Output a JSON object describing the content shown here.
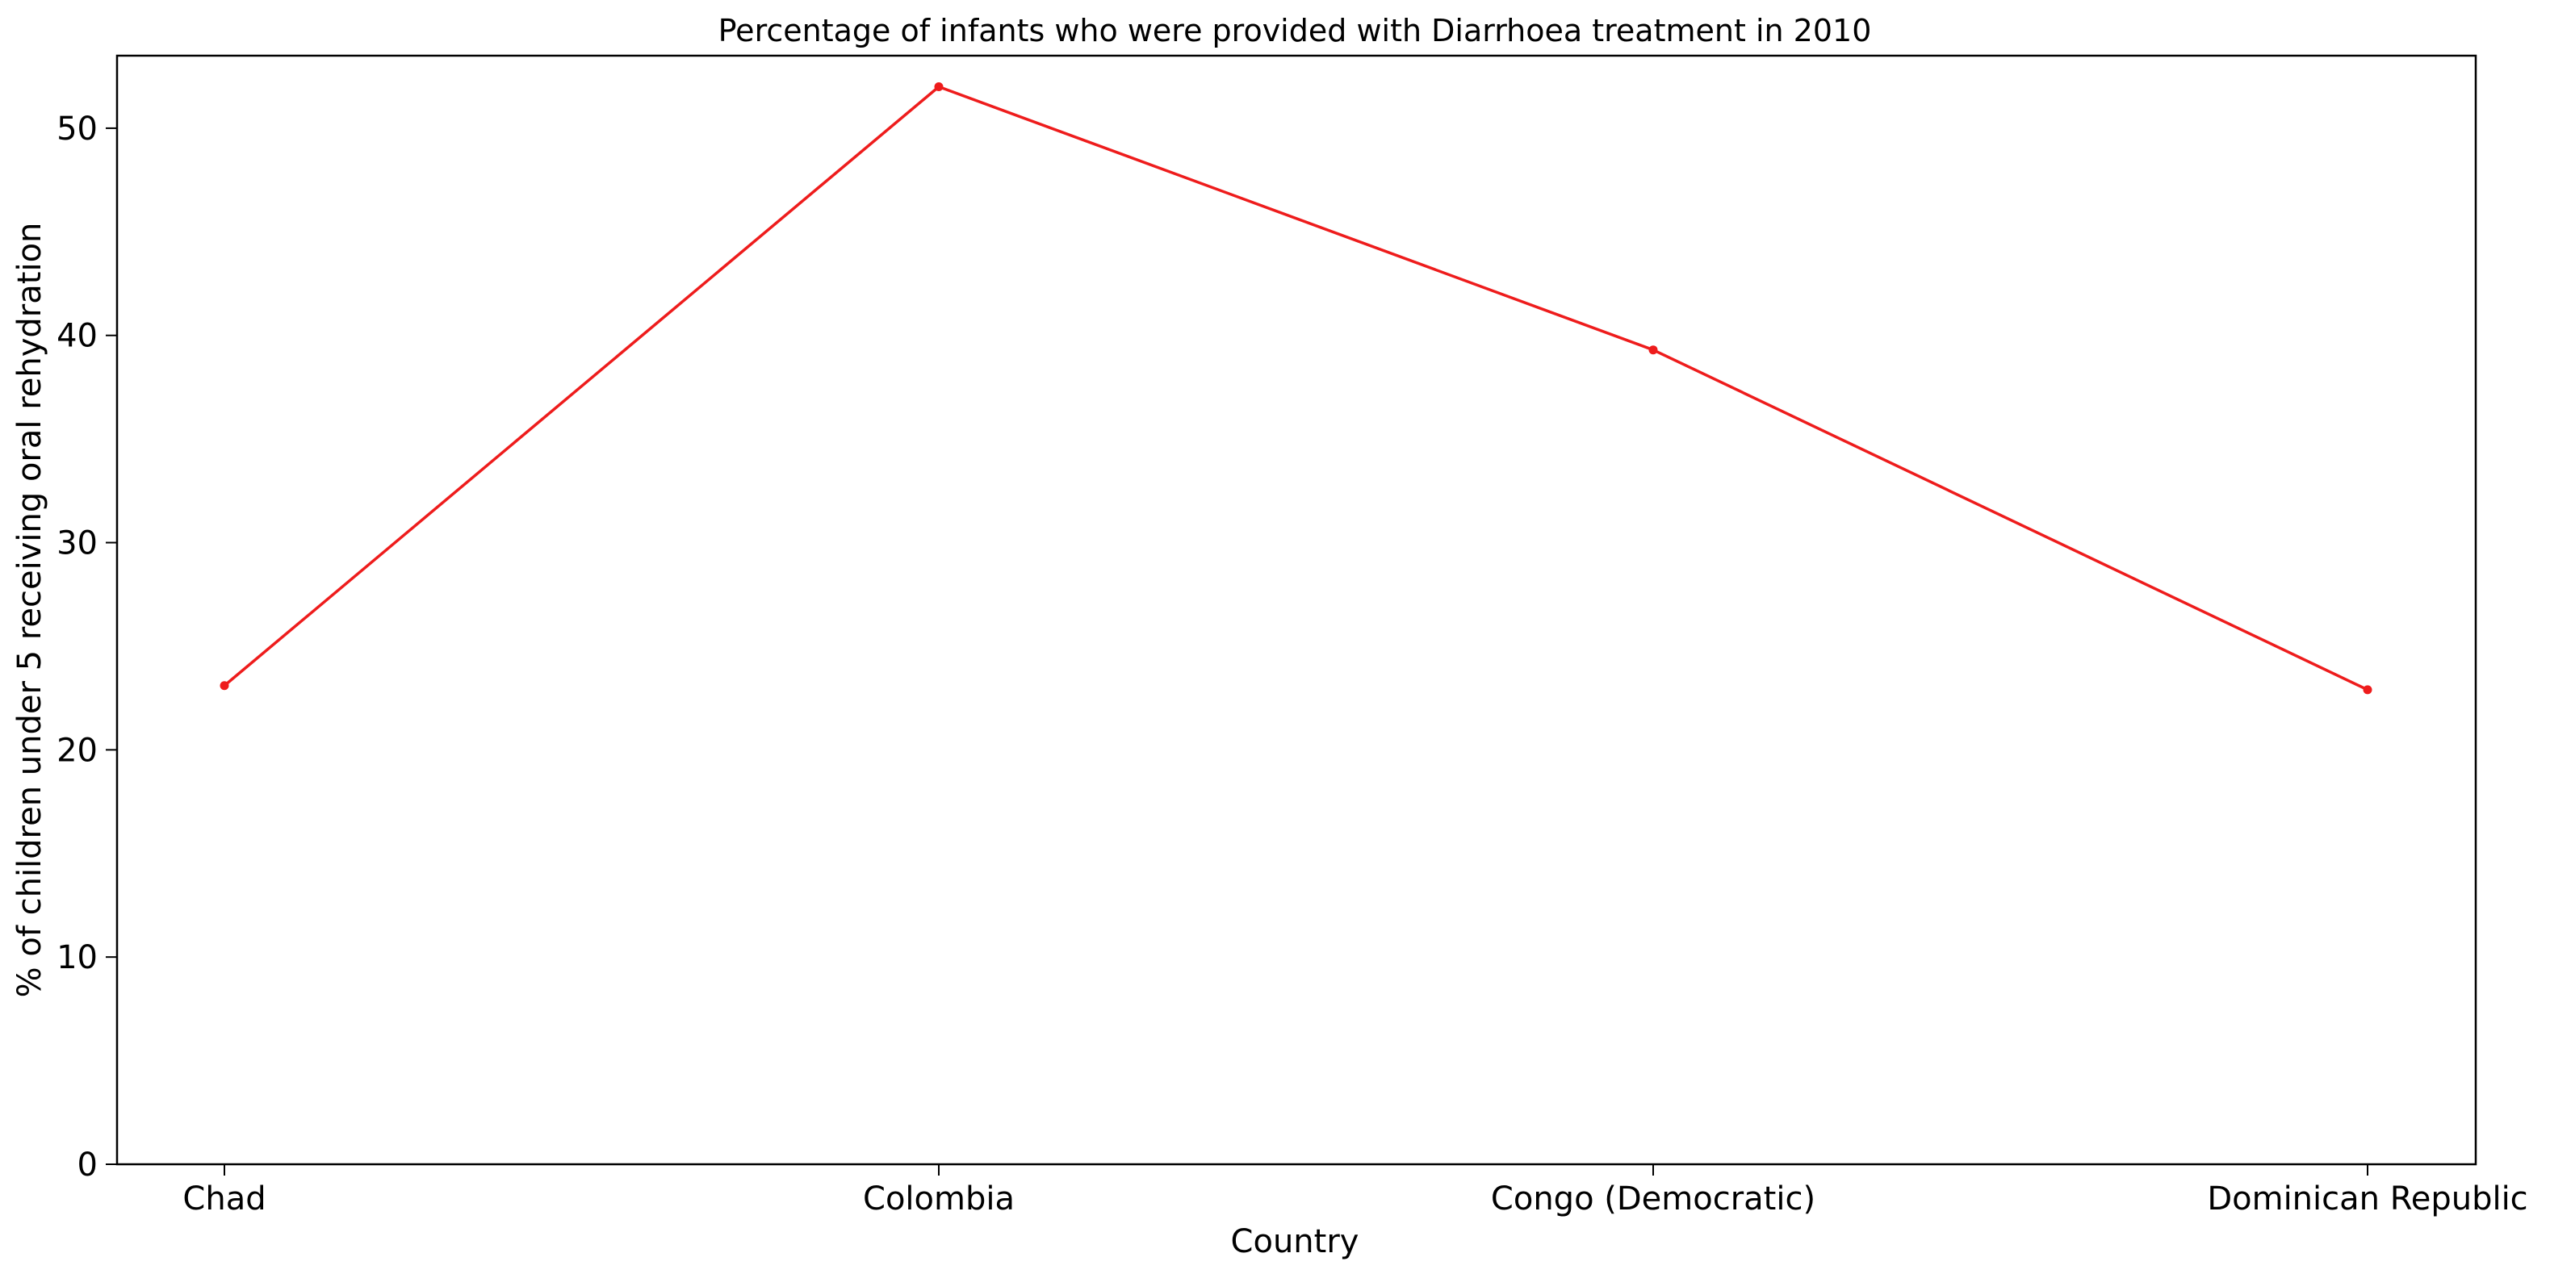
{
  "chart_data": {
    "type": "line",
    "title": "Percentage of infants who were provided with Diarrhoea treatment in 2010",
    "xlabel": "Country",
    "ylabel": "% of children under 5 receiving oral rehydration",
    "categories": [
      "Chad",
      "Colombia",
      "Congo (Democratic)",
      "Dominican Republic"
    ],
    "series": [
      {
        "values": [
          23.1,
          52.0,
          39.3,
          22.9
        ],
        "color": "#ee1c1c",
        "marker": "circle"
      }
    ],
    "ylim": [
      0,
      53.5
    ],
    "yticks": [
      0,
      10,
      20,
      30,
      40,
      50
    ],
    "grid": false,
    "legend": "none"
  }
}
